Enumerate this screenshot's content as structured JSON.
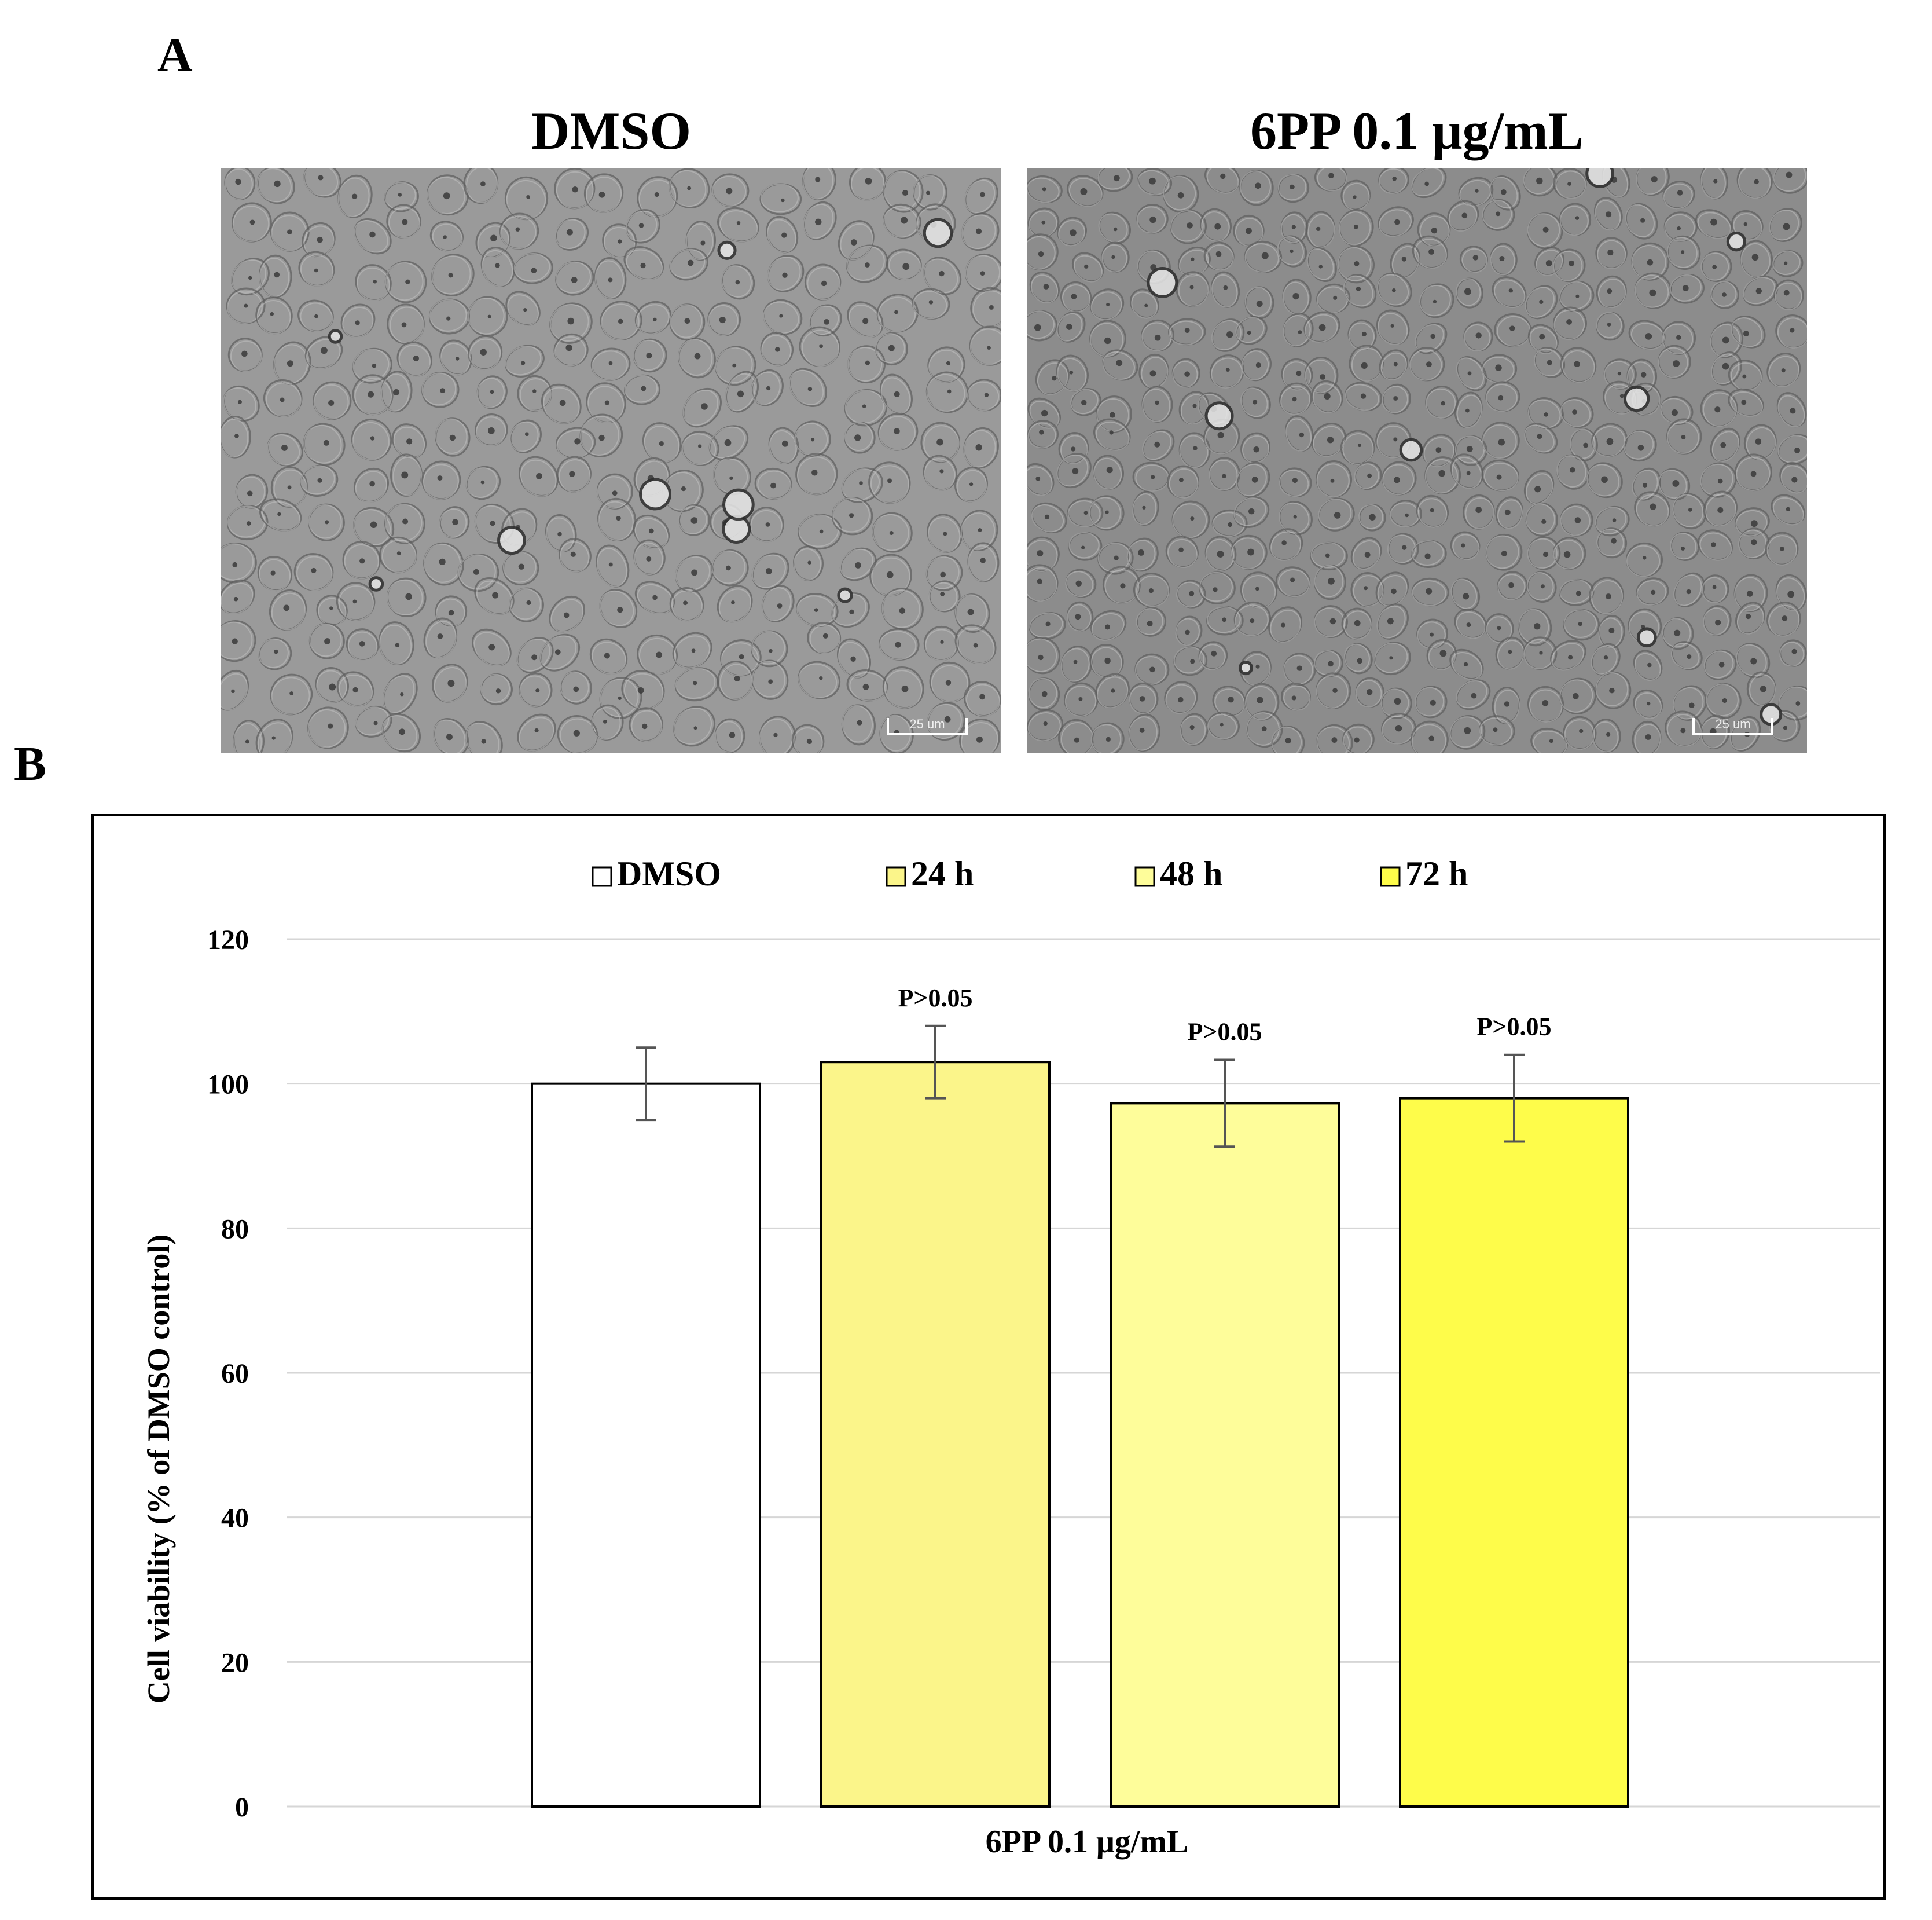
{
  "panels": {
    "a_label": "A",
    "b_label": "B"
  },
  "images": [
    {
      "title": "DMSO",
      "scalebar": "25 um"
    },
    {
      "title": "6PP 0.1 μg/mL",
      "scalebar": "25 um"
    }
  ],
  "colors": {
    "dmso": "#ffffff",
    "h24": "#fbf58a",
    "h48": "#fefd9a",
    "h72": "#fefc4a",
    "grid": "#d6d6d6",
    "error_bar": "#555555"
  },
  "chart_data": {
    "type": "bar",
    "categories": [
      "6PP 0.1 μg/mL"
    ],
    "xlabel": "6PP 0.1 μg/mL",
    "ylabel": "Cell viability (% of DMSO control)",
    "ylim": [
      0,
      120
    ],
    "yticks": [
      0,
      20,
      40,
      60,
      80,
      100,
      120
    ],
    "grid": true,
    "legend_position": "top",
    "series": [
      {
        "name": "DMSO",
        "values": [
          100
        ],
        "error": [
          5
        ],
        "color": "#ffffff",
        "annotation": ""
      },
      {
        "name": "24 h",
        "values": [
          103
        ],
        "error": [
          5
        ],
        "color": "#fbf58a",
        "annotation": "P>0.05"
      },
      {
        "name": "48 h",
        "values": [
          97.3
        ],
        "error": [
          6
        ],
        "color": "#fefd9a",
        "annotation": "P>0.05"
      },
      {
        "name": "72 h",
        "values": [
          98
        ],
        "error": [
          6
        ],
        "color": "#fefc4a",
        "annotation": "P>0.05"
      }
    ]
  }
}
